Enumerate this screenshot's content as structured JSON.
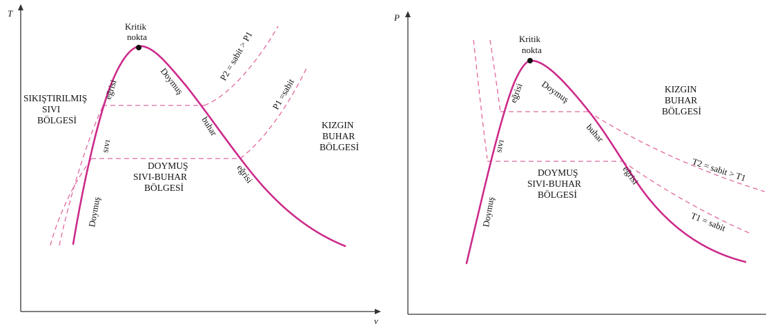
{
  "diagrams": [
    {
      "y_axis_label": "T",
      "x_axis_label": "v",
      "critical_point": [
        "Kritik",
        "nokta"
      ],
      "regions": {
        "compressed_liquid": [
          "SIKIŞTIRILMIŞ",
          "SIVI",
          "BÖLGESİ"
        ],
        "superheated_vapor": [
          "KIZGIN",
          "BUHAR",
          "BÖLGESİ"
        ],
        "saturated_mixture": [
          "DOYMUŞ",
          "SIVI-BUHAR",
          "BÖLGESİ"
        ]
      },
      "saturated_liquid_curve": [
        "Doymuş",
        "sıvı",
        "eğrisi"
      ],
      "saturated_vapor_curve": [
        "Doymuş",
        "buhar",
        "eğrisi"
      ],
      "isobars": {
        "high": "P2 = sabit > P1",
        "low": "P1 =sabit"
      }
    },
    {
      "y_axis_label": "P",
      "x_axis_label": "",
      "critical_point": [
        "Kritik",
        "nokta"
      ],
      "regions": {
        "superheated_vapor": [
          "KIZGIN",
          "BUHAR",
          "BÖLGESİ"
        ],
        "saturated_mixture": [
          "DOYMUŞ",
          "SIVI-BUHAR",
          "BÖLGESİ"
        ]
      },
      "saturated_liquid_curve": [
        "Doymuş",
        "sıvı",
        "eğrisi"
      ],
      "saturated_vapor_curve": [
        "Doymuş",
        "buhar",
        "eğrisi"
      ],
      "isotherms": {
        "high": "T2 = sabit > T1",
        "low": "T1 = sabit"
      }
    }
  ],
  "colors": {
    "saturation_curve": "#cc2a8a",
    "dashed_lines": "#e0669f",
    "axis": "#333333"
  }
}
